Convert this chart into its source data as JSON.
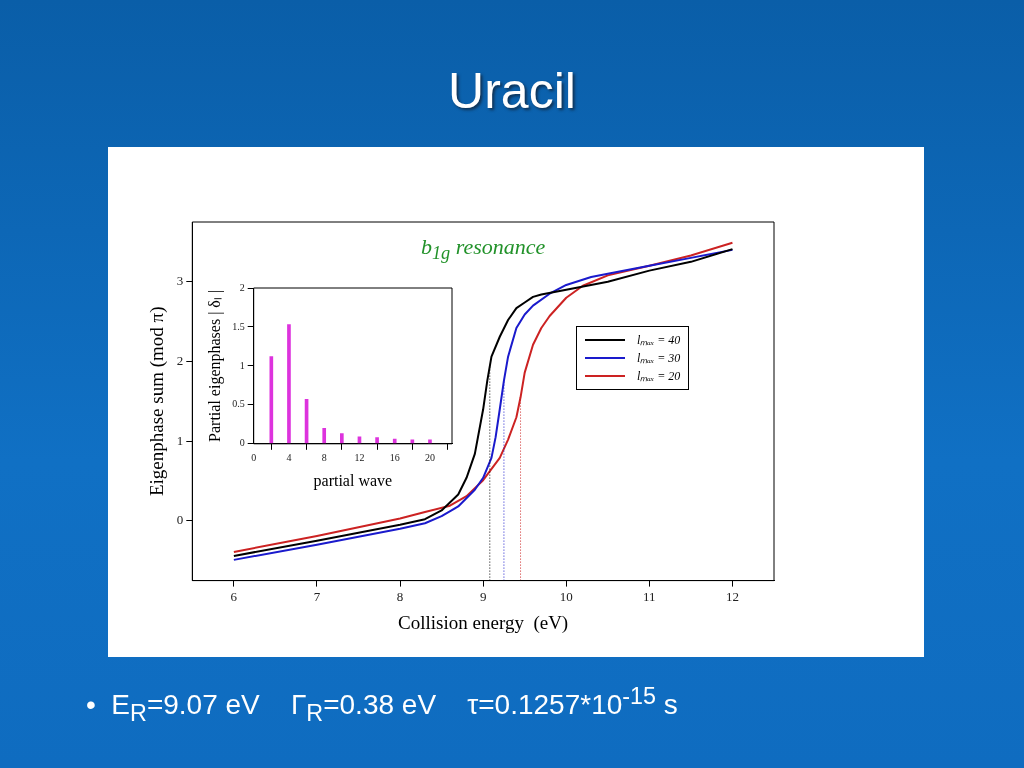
{
  "chart_data": [
    {
      "type": "line",
      "title": "Uracil",
      "xlabel": "Collision energy  (eV)",
      "ylabel": "Eigenphase sum (mod π)",
      "xlim": [
        5.5,
        12.5
      ],
      "ylim": [
        -0.75,
        3.75
      ],
      "xticks": [
        6,
        7,
        8,
        9,
        10,
        11,
        12
      ],
      "yticks": [
        0,
        1,
        2,
        3
      ],
      "legend": "right",
      "grid": false,
      "marker": "none",
      "line_style": "solid",
      "annotations": [
        "b$_{1g}$ resonance",
        "•  E$_{R}$=9.07 eV    Γ$_{R}$=0.38 eV    τ=0.1257*10$^{-15}$ s"
      ],
      "ref_lines": [
        {
          "axis": "x",
          "value": 9.08,
          "color": "#000000",
          "line_style": "dotted"
        },
        {
          "axis": "x",
          "value": 9.25,
          "color": "#1a1acc",
          "line_style": "dotted"
        },
        {
          "axis": "x",
          "value": 9.45,
          "color": "#cc2222",
          "line_style": "dotted"
        }
      ],
      "series": [
        {
          "name": "lₘₐₓ = 40",
          "color": "#000000",
          "x": [
            6,
            7,
            7.5,
            8,
            8.3,
            8.5,
            8.7,
            8.8,
            8.9,
            9,
            9.05,
            9.1,
            9.2,
            9.3,
            9.4,
            9.5,
            9.6,
            9.7,
            10,
            10.5,
            11,
            11.5,
            12
          ],
          "values": [
            -0.44,
            -0.25,
            -0.15,
            -0.05,
            0.02,
            0.13,
            0.33,
            0.54,
            0.84,
            1.4,
            1.76,
            2.06,
            2.31,
            2.52,
            2.67,
            2.74,
            2.81,
            2.84,
            2.9,
            3.0,
            3.14,
            3.25,
            3.41
          ]
        },
        {
          "name": "lₘₐₓ = 30",
          "color": "#1a1acc",
          "x": [
            6,
            7,
            8,
            8.3,
            8.5,
            8.7,
            8.9,
            9,
            9.1,
            9.15,
            9.2,
            9.25,
            9.3,
            9.4,
            9.5,
            9.6,
            9.8,
            10,
            10.3,
            10.5,
            11,
            11.5,
            12
          ],
          "values": [
            -0.49,
            -0.3,
            -0.1,
            -0.03,
            0.06,
            0.18,
            0.39,
            0.54,
            0.79,
            1.05,
            1.4,
            1.76,
            2.06,
            2.42,
            2.59,
            2.7,
            2.85,
            2.96,
            3.06,
            3.1,
            3.2,
            3.3,
            3.4
          ]
        },
        {
          "name": "lₘₐₓ = 20",
          "color": "#cc2222",
          "x": [
            6,
            7,
            8,
            8.3,
            8.6,
            8.8,
            9,
            9.2,
            9.3,
            9.4,
            9.45,
            9.5,
            9.6,
            9.7,
            9.8,
            10,
            10.2,
            10.5,
            11,
            11.5,
            12
          ],
          "values": [
            -0.39,
            -0.19,
            0.03,
            0.11,
            0.19,
            0.31,
            0.51,
            0.79,
            1.02,
            1.3,
            1.55,
            1.86,
            2.21,
            2.42,
            2.57,
            2.8,
            2.95,
            3.08,
            3.2,
            3.33,
            3.49
          ]
        }
      ]
    },
    {
      "type": "bar",
      "xlabel": "partial wave",
      "ylabel": "Partial eigenphases | δₗ |",
      "xlim": [
        0,
        22.5
      ],
      "ylim": [
        0,
        2
      ],
      "xticks": [
        0,
        4,
        8,
        12,
        16,
        20
      ],
      "yticks": [
        0,
        0.5,
        1,
        1.5,
        2
      ],
      "grid": false,
      "color": "#dd33dd",
      "x": [
        2,
        4,
        6,
        8,
        10,
        12,
        14,
        16,
        18,
        20
      ],
      "values": [
        1.12,
        1.53,
        0.57,
        0.2,
        0.13,
        0.09,
        0.08,
        0.06,
        0.05,
        0.05
      ]
    }
  ]
}
